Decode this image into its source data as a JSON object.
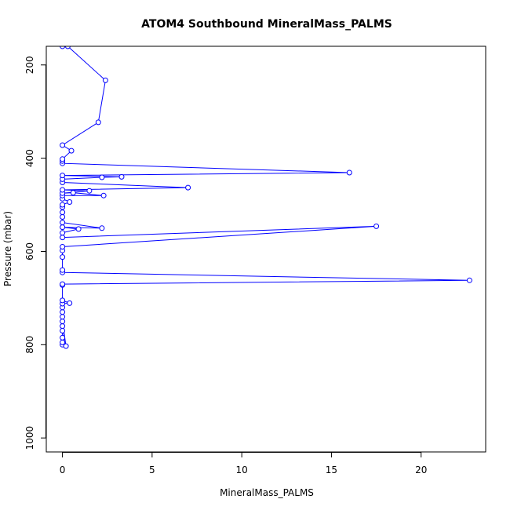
{
  "chart_data": {
    "type": "line",
    "title": "ATOM4 Southbound MineralMass_PALMS",
    "xlabel": "MineralMass_PALMS",
    "ylabel": "Pressure (mbar)",
    "xlim": [
      -0.9,
      23.6
    ],
    "ylim": [
      1030,
      160
    ],
    "y_reversed": true,
    "grid": false,
    "line_color": "#0000ff",
    "marker": "open-circle",
    "x_ticks": [
      0,
      5,
      10,
      15,
      20
    ],
    "y_ticks": [
      200,
      400,
      600,
      800,
      1000
    ],
    "series": [
      {
        "points": [
          [
            0.0,
            800
          ],
          [
            0.0,
            795
          ],
          [
            0.0,
            785
          ],
          [
            0.0,
            770
          ],
          [
            0.0,
            760
          ],
          [
            0.2,
            803
          ],
          [
            0.0,
            750
          ],
          [
            0.0,
            740
          ],
          [
            0.0,
            730
          ],
          [
            0.0,
            720
          ],
          [
            0.0,
            712
          ],
          [
            0.4,
            711
          ],
          [
            0.0,
            705
          ],
          [
            0.0,
            672
          ],
          [
            0.0,
            670
          ],
          [
            22.7,
            662
          ],
          [
            0.0,
            645
          ],
          [
            0.0,
            640
          ],
          [
            0.0,
            612
          ],
          [
            0.0,
            598
          ],
          [
            0.0,
            590
          ],
          [
            17.5,
            546
          ],
          [
            0.0,
            570
          ],
          [
            0.0,
            560
          ],
          [
            0.9,
            552
          ],
          [
            0.0,
            548
          ],
          [
            2.2,
            550
          ],
          [
            0.0,
            538
          ],
          [
            0.0,
            526
          ],
          [
            0.0,
            516
          ],
          [
            0.0,
            505
          ],
          [
            0.0,
            500
          ],
          [
            0.4,
            494
          ],
          [
            0.0,
            487
          ],
          [
            0.0,
            480
          ],
          [
            2.3,
            480
          ],
          [
            0.6,
            474
          ],
          [
            0.0,
            475
          ],
          [
            1.5,
            470
          ],
          [
            0.0,
            468
          ],
          [
            7.0,
            463
          ],
          [
            0.0,
            452
          ],
          [
            0.0,
            445
          ],
          [
            2.2,
            441
          ],
          [
            3.3,
            440
          ],
          [
            0.0,
            437
          ],
          [
            16.0,
            431
          ],
          [
            0.0,
            411
          ],
          [
            0.0,
            406
          ],
          [
            0.0,
            402
          ],
          [
            0.5,
            384
          ],
          [
            0.0,
            372
          ],
          [
            2.0,
            323
          ],
          [
            2.4,
            233
          ],
          [
            0.3,
            160
          ],
          [
            0.0,
            160
          ]
        ]
      }
    ]
  }
}
